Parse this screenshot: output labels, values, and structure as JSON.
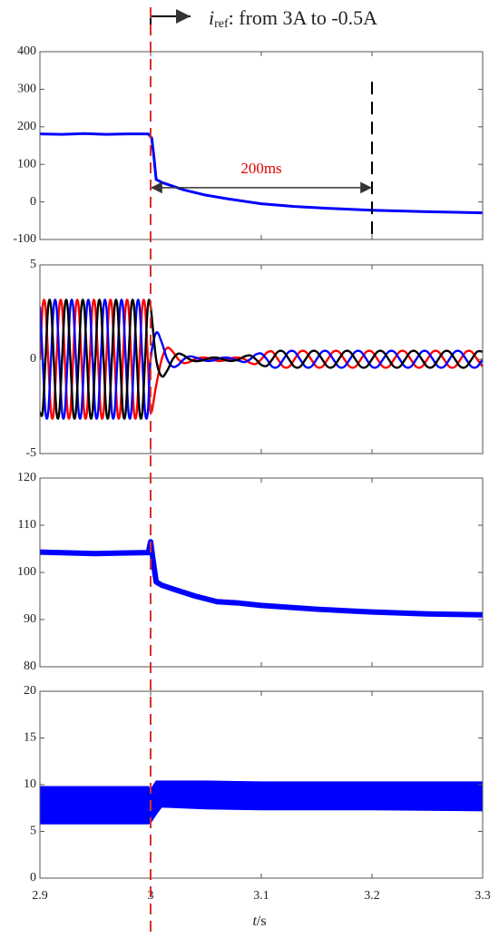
{
  "chart_data": [
    {
      "type": "line",
      "annotation": {
        "symbol": "i",
        "subscript": "ref",
        "text": ": from 3A to -0.5A"
      },
      "interval_label": "200ms",
      "interval": [
        3,
        3.2
      ],
      "interval_y": 38,
      "marker_x": 3.2,
      "marker_top": 320,
      "event_x": 3,
      "event_color": "#d9302c",
      "x": [
        2.9,
        2.92,
        2.94,
        2.96,
        2.98,
        2.998,
        3.001,
        3.003,
        3.005,
        3.01,
        3.02,
        3.03,
        3.05,
        3.07,
        3.1,
        3.13,
        3.16,
        3.2,
        3.25,
        3.3
      ],
      "series": [
        {
          "color": "#0000ff",
          "values": [
            181,
            180,
            182,
            180,
            181,
            181,
            170,
            120,
            60,
            52,
            42,
            32,
            18,
            8,
            -5,
            -12,
            -17,
            -22,
            -26,
            -29
          ]
        }
      ],
      "ylim": [
        -100,
        400
      ],
      "yticks": [
        400,
        300,
        200,
        100,
        0,
        -100
      ]
    },
    {
      "type": "line",
      "x": [
        2.9,
        2.9025,
        2.905,
        2.9075,
        2.91,
        2.9125,
        2.915,
        2.9175,
        2.92,
        2.9225,
        2.925,
        2.9275,
        2.93,
        2.9325,
        2.935,
        2.9375,
        2.94,
        2.9425,
        2.945,
        2.9475,
        2.95,
        2.9525,
        2.955,
        2.9575,
        2.96,
        2.9625,
        2.965,
        2.9675,
        2.97,
        2.9725,
        2.975,
        2.9775,
        2.98,
        2.9825,
        2.985,
        2.9875,
        2.99,
        2.9925,
        2.995,
        2.9975,
        3,
        3.005,
        3.01,
        3.015,
        3.02,
        3.025,
        3.03,
        3.035,
        3.04,
        3.045,
        3.05,
        3.055,
        3.06,
        3.065,
        3.07,
        3.075,
        3.08,
        3.085,
        3.09,
        3.095,
        3.1,
        3.105,
        3.11,
        3.115,
        3.12,
        3.125,
        3.13,
        3.135,
        3.14,
        3.145,
        3.15,
        3.155,
        3.16,
        3.165,
        3.17,
        3.175,
        3.18,
        3.185,
        3.19,
        3.195,
        3.2,
        3.205,
        3.21,
        3.215,
        3.22,
        3.225,
        3.23,
        3.235,
        3.24,
        3.245,
        3.25,
        3.255,
        3.26,
        3.265,
        3.27,
        3.275,
        3.28,
        3.285,
        3.29,
        3.295,
        3.3
      ],
      "series": [
        {
          "color": "#ff0000",
          "values": [
            0,
            2.8,
            2.8,
            0,
            -2.8,
            -2.8,
            0,
            2.8,
            2.8,
            0,
            -2.8,
            -2.8,
            0,
            2.8,
            2.8,
            0,
            -2.8,
            -2.8,
            0,
            2.8,
            2.8,
            0,
            -2.8,
            -2.8,
            0,
            2.8,
            2.8,
            0,
            -2.8,
            -2.8,
            0,
            2.8,
            2.8,
            0,
            -2.8,
            -2.8,
            0,
            2.8,
            2.8,
            0,
            -2.8,
            -1.4,
            0,
            0.6,
            0.4,
            0,
            -0.2,
            -0.15,
            0,
            0.08,
            0.08,
            0,
            -0.08,
            -0.08,
            0,
            0.08,
            0.08,
            0,
            -0.2,
            -0.25,
            0,
            0.35,
            0.4,
            0,
            -0.4,
            -0.4,
            0,
            0.4,
            0.4,
            0,
            -0.4,
            -0.4,
            0,
            0.4,
            0.4,
            0,
            -0.4,
            -0.4,
            0,
            0.4,
            0.4,
            0,
            -0.4,
            -0.4,
            0,
            0.4,
            0.4,
            0,
            -0.4,
            -0.4,
            0,
            0.4,
            0.4,
            0,
            -0.4,
            -0.4,
            0,
            0.4,
            0.4,
            0,
            -0.4
          ]
        },
        {
          "color": "#0000ff",
          "values": [
            2.8,
            0,
            -2.8,
            -2.8,
            0,
            2.8,
            2.8,
            0,
            -2.8,
            -2.8,
            0,
            2.8,
            2.8,
            0,
            -2.8,
            -2.8,
            0,
            2.8,
            2.8,
            0,
            -2.8,
            -2.8,
            0,
            2.8,
            2.8,
            0,
            -2.8,
            -2.8,
            0,
            2.8,
            2.8,
            0,
            -2.8,
            -2.8,
            0,
            2.8,
            2.8,
            0,
            -2.8,
            -2.8,
            0,
            1.4,
            0.9,
            0,
            -0.4,
            -0.3,
            0,
            0.15,
            0.1,
            0,
            -0.08,
            -0.08,
            0,
            0.08,
            0.08,
            0,
            -0.08,
            -0.15,
            0,
            0.25,
            0.3,
            0,
            -0.4,
            -0.4,
            0,
            0.4,
            0.4,
            0,
            -0.4,
            -0.4,
            0,
            0.4,
            0.4,
            0,
            -0.4,
            -0.4,
            0,
            0.4,
            0.4,
            0,
            -0.4,
            -0.4,
            0,
            0.4,
            0.4,
            0,
            -0.4,
            -0.4,
            0,
            0.4,
            0.4,
            0,
            -0.4,
            -0.4,
            0,
            0.4,
            0.4,
            0,
            -0.4,
            -0.4,
            0
          ]
        },
        {
          "color": "#000000",
          "values": [
            -2.8,
            -2.8,
            0,
            2.8,
            2.8,
            0,
            -2.8,
            -2.8,
            0,
            2.8,
            2.8,
            0,
            -2.8,
            -2.8,
            0,
            2.8,
            2.8,
            0,
            -2.8,
            -2.8,
            0,
            2.8,
            2.8,
            0,
            -2.8,
            -2.8,
            0,
            2.8,
            2.8,
            0,
            -2.8,
            -2.8,
            0,
            2.8,
            2.8,
            0,
            -2.8,
            -2.8,
            0,
            2.8,
            2.8,
            0,
            -0.9,
            -0.6,
            0,
            0.3,
            0.2,
            0,
            -0.1,
            -0.08,
            0,
            0.08,
            0.08,
            0,
            -0.08,
            -0.08,
            0,
            0.15,
            0.2,
            0,
            -0.3,
            -0.35,
            0,
            0.4,
            0.4,
            0,
            -0.4,
            -0.4,
            0,
            0.4,
            0.4,
            0,
            -0.4,
            -0.4,
            0,
            0.4,
            0.4,
            0,
            -0.4,
            -0.4,
            0,
            0.4,
            0.4,
            0,
            -0.4,
            -0.4,
            0,
            0.4,
            0.4,
            0,
            -0.4,
            -0.4,
            0,
            0.4,
            0.4,
            0,
            -0.4,
            -0.4,
            0,
            0.4,
            0.4
          ]
        }
      ],
      "ylim": [
        -5,
        5
      ],
      "yticks": [
        5,
        0,
        -5
      ]
    },
    {
      "type": "line",
      "x": [
        2.9,
        2.95,
        2.998,
        3,
        3.002,
        3.005,
        3.01,
        3.02,
        3.04,
        3.06,
        3.08,
        3.1,
        3.15,
        3.2,
        3.25,
        3.3
      ],
      "series": [
        {
          "color": "#0000ff",
          "values": [
            104.3,
            104,
            104.2,
            106.5,
            103,
            98,
            97.3,
            96.5,
            95,
            93.8,
            93.5,
            93,
            92.2,
            91.6,
            91.2,
            91
          ]
        }
      ],
      "ylim": [
        80,
        120
      ],
      "yticks": [
        120,
        110,
        100,
        90,
        80
      ]
    },
    {
      "type": "band",
      "x": [
        2.9,
        2.998,
        3,
        3.005,
        3.01,
        3.05,
        3.1,
        3.2,
        3.3
      ],
      "upper": [
        9.8,
        9.8,
        9.5,
        10.4,
        10.4,
        10.4,
        10.3,
        10.3,
        10.3
      ],
      "lower": [
        5.8,
        5.8,
        5.9,
        6.8,
        7.6,
        7.4,
        7.3,
        7.3,
        7.2
      ],
      "color": "#0000ff",
      "ylim": [
        0,
        20
      ],
      "yticks": [
        20,
        15,
        10,
        5,
        0
      ],
      "xlim": [
        2.9,
        3.3
      ],
      "xticks": [
        2.9,
        3,
        3.1,
        3.2,
        3.3
      ],
      "xlabel": {
        "symbol": "t",
        "unit": "/s"
      }
    }
  ]
}
